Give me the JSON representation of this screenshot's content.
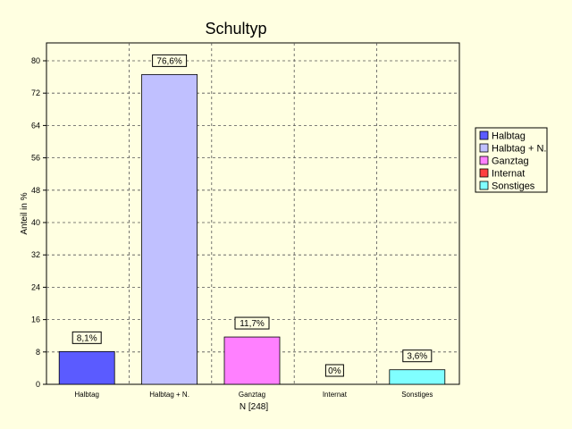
{
  "chart_data": {
    "type": "bar",
    "title": "Schultyp",
    "xlabel": "N [248]",
    "ylabel": "Anteil in %",
    "ylim": [
      0,
      80
    ],
    "yticks": [
      0,
      8,
      16,
      24,
      32,
      40,
      48,
      56,
      64,
      72,
      80
    ],
    "grid": true,
    "legend_position": "right",
    "categories": [
      "Halbtag",
      "Halbtag + N.",
      "Ganztag",
      "Internat",
      "Sonstiges"
    ],
    "values": [
      8.1,
      76.6,
      11.7,
      0,
      3.6
    ],
    "data_labels": [
      "8,1%",
      "76,6%",
      "11,7%",
      "0%",
      "3,6%"
    ],
    "colors": [
      "#5b5bff",
      "#c0c0ff",
      "#ff80ff",
      "#ff4040",
      "#80ffff"
    ],
    "legend": [
      "Halbtag",
      "Halbtag + N.",
      "Ganztag",
      "Internat",
      "Sonstiges"
    ]
  }
}
